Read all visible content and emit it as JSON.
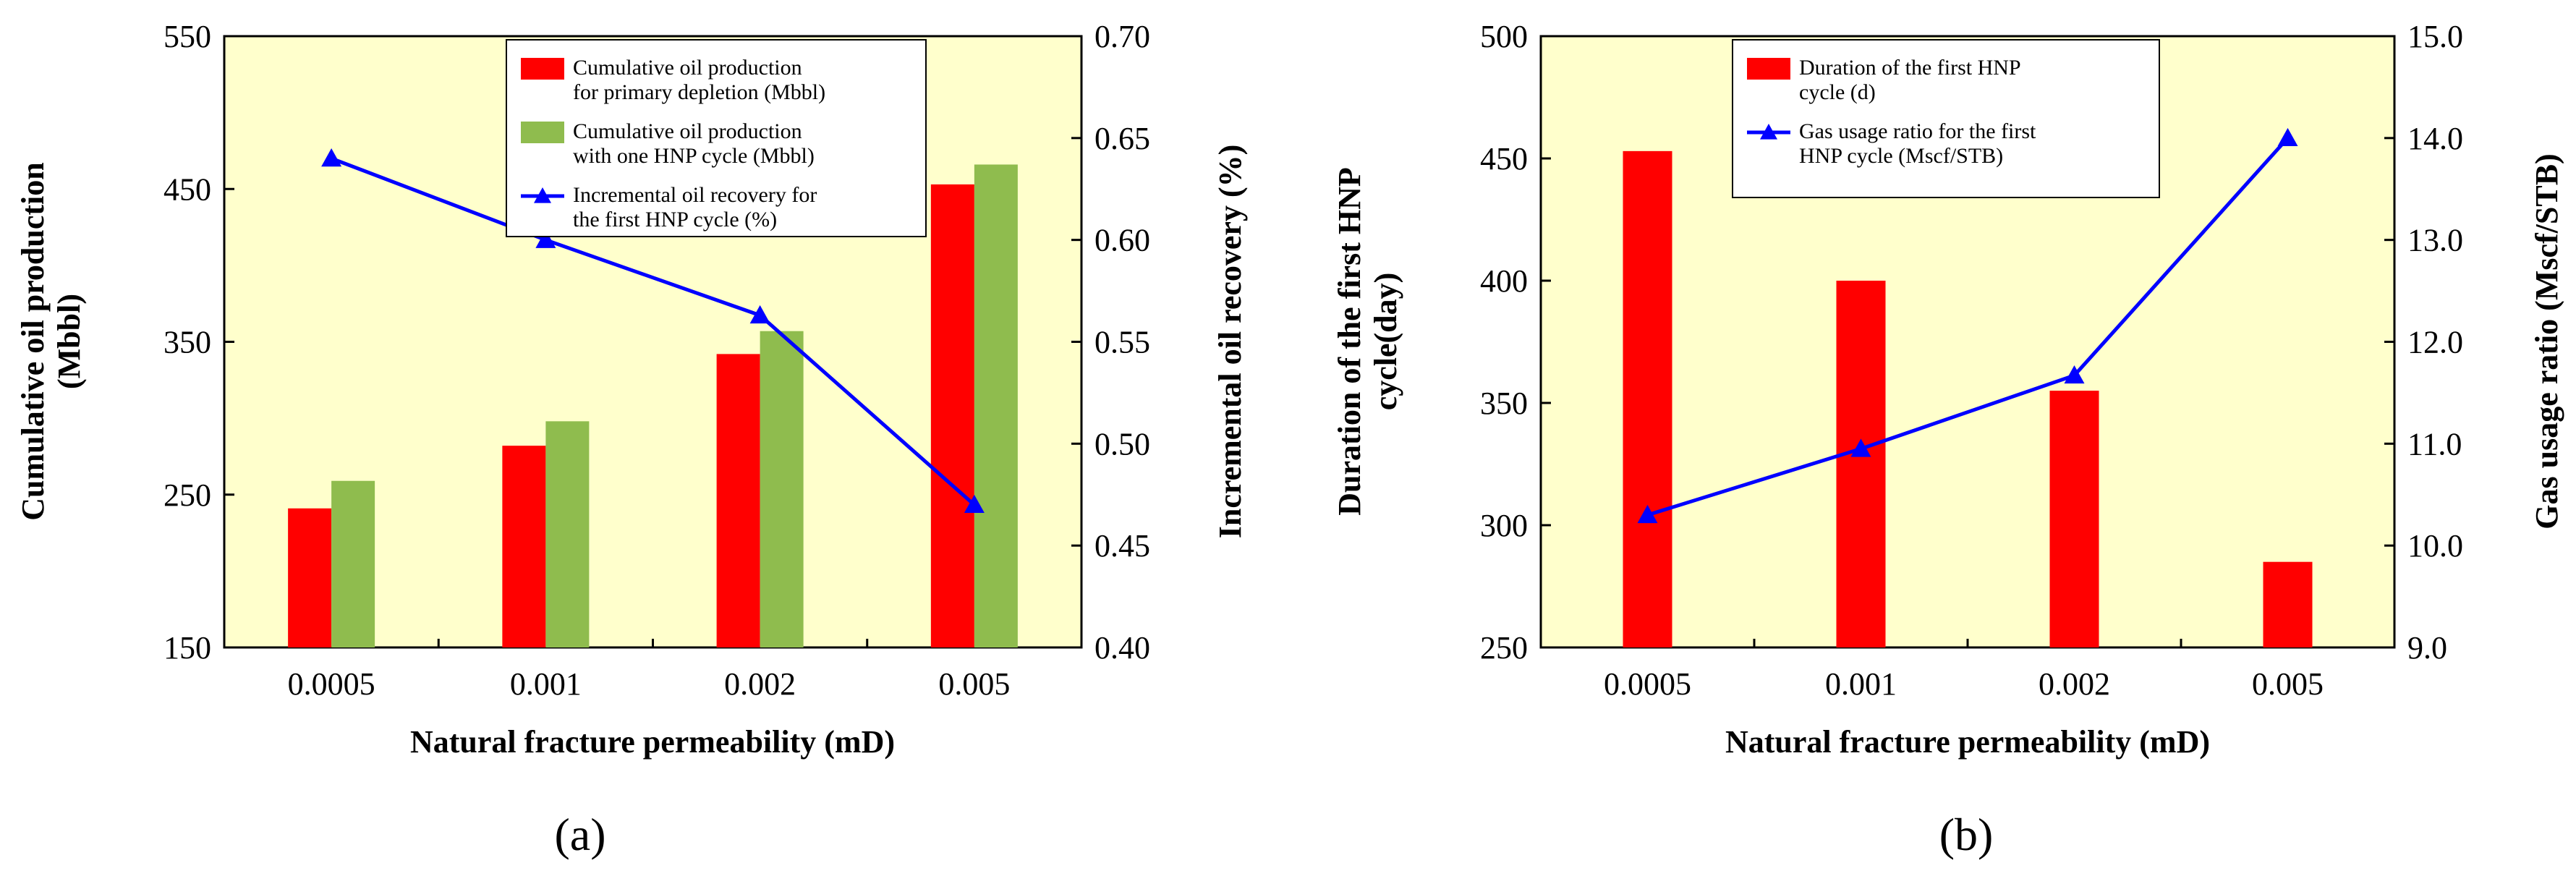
{
  "chart_data": [
    {
      "type": "bar+line",
      "panel_label": "(a)",
      "categories": [
        "0.0005",
        "0.001",
        "0.002",
        "0.005"
      ],
      "xlabel": "Natural fracture permeability (mD)",
      "ylabel_left": [
        "Cumulative oil production",
        "(Mbbl)"
      ],
      "ylabel_right": "Incremental oil recovery (%)",
      "ylim_left": [
        150,
        550
      ],
      "yticks_left": [
        "150",
        "250",
        "350",
        "450",
        "550"
      ],
      "ylim_right": [
        0.4,
        0.7
      ],
      "yticks_right": [
        "0.40",
        "0.45",
        "0.50",
        "0.55",
        "0.60",
        "0.65",
        "0.70"
      ],
      "bar_series": [
        {
          "name_lines": [
            "Cumulative oil production",
            "for primary depletion (Mbbl)"
          ],
          "color": "#ff0000",
          "values": [
            241,
            282,
            342,
            453
          ]
        },
        {
          "name_lines": [
            "Cumulative oil production",
            "with one HNP cycle (Mbbl)"
          ],
          "color": "#8fbc4e",
          "values": [
            259,
            298,
            357,
            466
          ]
        }
      ],
      "line_series": [
        {
          "name_lines": [
            "Incremental oil recovery for",
            "the first HNP cycle (%)"
          ],
          "color": "#0000ff",
          "values": [
            0.64,
            0.6,
            0.563,
            0.47
          ]
        }
      ]
    },
    {
      "type": "bar+line",
      "panel_label": "(b)",
      "categories": [
        "0.0005",
        "0.001",
        "0.002",
        "0.005"
      ],
      "xlabel": "Natural fracture permeability (mD)",
      "ylabel_left": [
        "Duration of the first HNP",
        "cycle(day)"
      ],
      "ylabel_right": "Gas usage ratio (Mscf/STB)",
      "ylim_left": [
        250,
        500
      ],
      "yticks_left": [
        "250",
        "300",
        "350",
        "400",
        "450",
        "500"
      ],
      "ylim_right": [
        9.0,
        15.0
      ],
      "yticks_right": [
        "9.0",
        "10.0",
        "11.0",
        "12.0",
        "13.0",
        "14.0",
        "15.0"
      ],
      "bar_series": [
        {
          "name_lines": [
            "Duration of the first HNP",
            "cycle (d)"
          ],
          "color": "#ff0000",
          "values": [
            453,
            400,
            355,
            285
          ]
        }
      ],
      "line_series": [
        {
          "name_lines": [
            "Gas usage ratio for the first",
            "HNP cycle (Mscf/STB)"
          ],
          "color": "#0000ff",
          "values": [
            10.3,
            10.95,
            11.67,
            14.0
          ]
        }
      ]
    }
  ]
}
